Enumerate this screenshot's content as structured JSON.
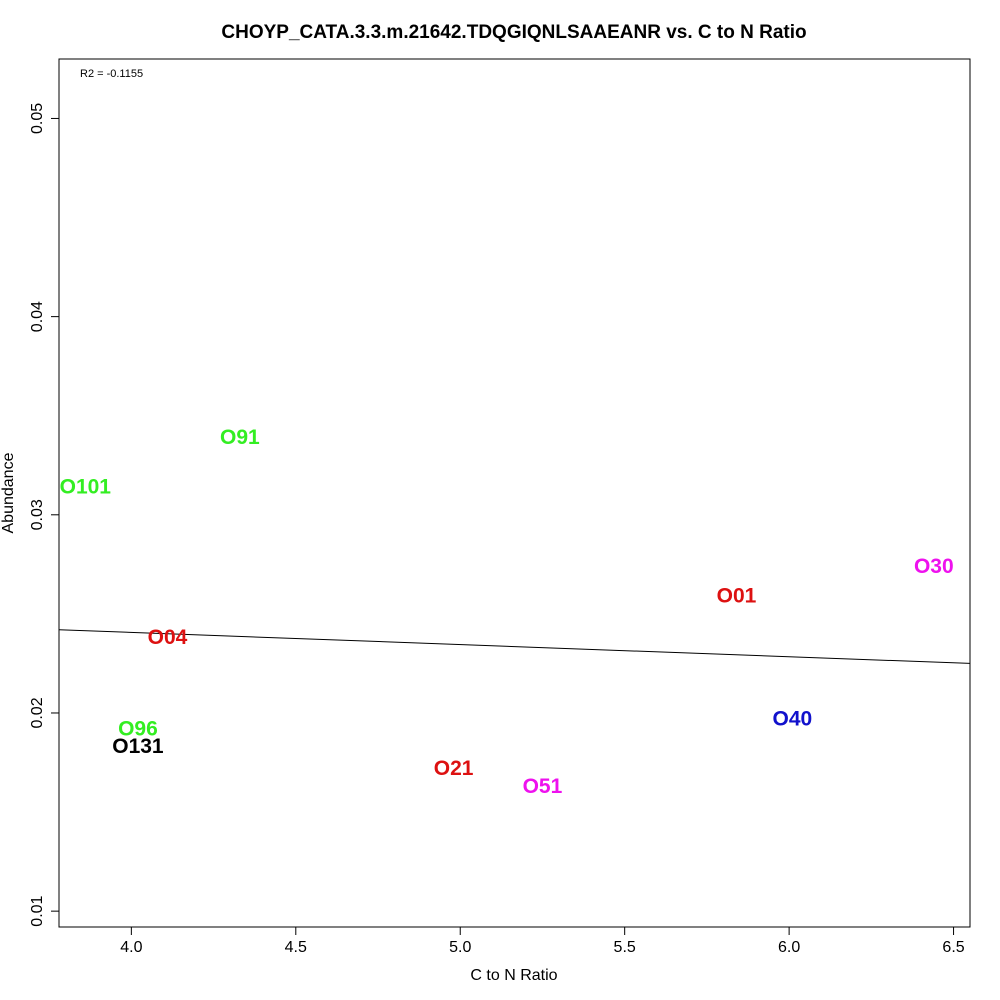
{
  "chart_data": {
    "type": "scatter",
    "title": "CHOYP_CATA.3.3.m.21642.TDQGIQNLSAAEANR vs. C to N Ratio",
    "xlabel": "C to N Ratio",
    "ylabel": "Abundance",
    "annotation": "R2 = -0.1155",
    "xlim": [
      3.78,
      6.55
    ],
    "ylim": [
      0.0092,
      0.053
    ],
    "xticks": [
      4.0,
      4.5,
      5.0,
      5.5,
      6.0,
      6.5
    ],
    "xtick_labels": [
      "4.0",
      "4.5",
      "5.0",
      "5.5",
      "6.0",
      "6.5"
    ],
    "yticks": [
      0.01,
      0.02,
      0.03,
      0.04,
      0.05
    ],
    "ytick_labels": [
      "0.01",
      "0.02",
      "0.03",
      "0.04",
      "0.05"
    ],
    "grid": false,
    "points": [
      {
        "label": "O101",
        "x": 3.86,
        "y": 0.0314,
        "color": "#33ee22"
      },
      {
        "label": "O91",
        "x": 4.33,
        "y": 0.0339,
        "color": "#33ee22"
      },
      {
        "label": "O04",
        "x": 4.11,
        "y": 0.0238,
        "color": "#dd1111"
      },
      {
        "label": "O96",
        "x": 4.02,
        "y": 0.0192,
        "color": "#33ee22"
      },
      {
        "label": "O131",
        "x": 4.02,
        "y": 0.0183,
        "color": "#000000"
      },
      {
        "label": "O21",
        "x": 4.98,
        "y": 0.0172,
        "color": "#dd1111"
      },
      {
        "label": "O51",
        "x": 5.25,
        "y": 0.0163,
        "color": "#ee11ee"
      },
      {
        "label": "O01",
        "x": 5.84,
        "y": 0.0259,
        "color": "#dd1111"
      },
      {
        "label": "O40",
        "x": 6.01,
        "y": 0.0197,
        "color": "#1111cc"
      },
      {
        "label": "O30",
        "x": 6.44,
        "y": 0.0274,
        "color": "#ee11ee"
      }
    ],
    "fit_line": {
      "x": [
        3.78,
        6.55
      ],
      "y": [
        0.0242,
        0.0225
      ],
      "color": "#000000"
    }
  }
}
